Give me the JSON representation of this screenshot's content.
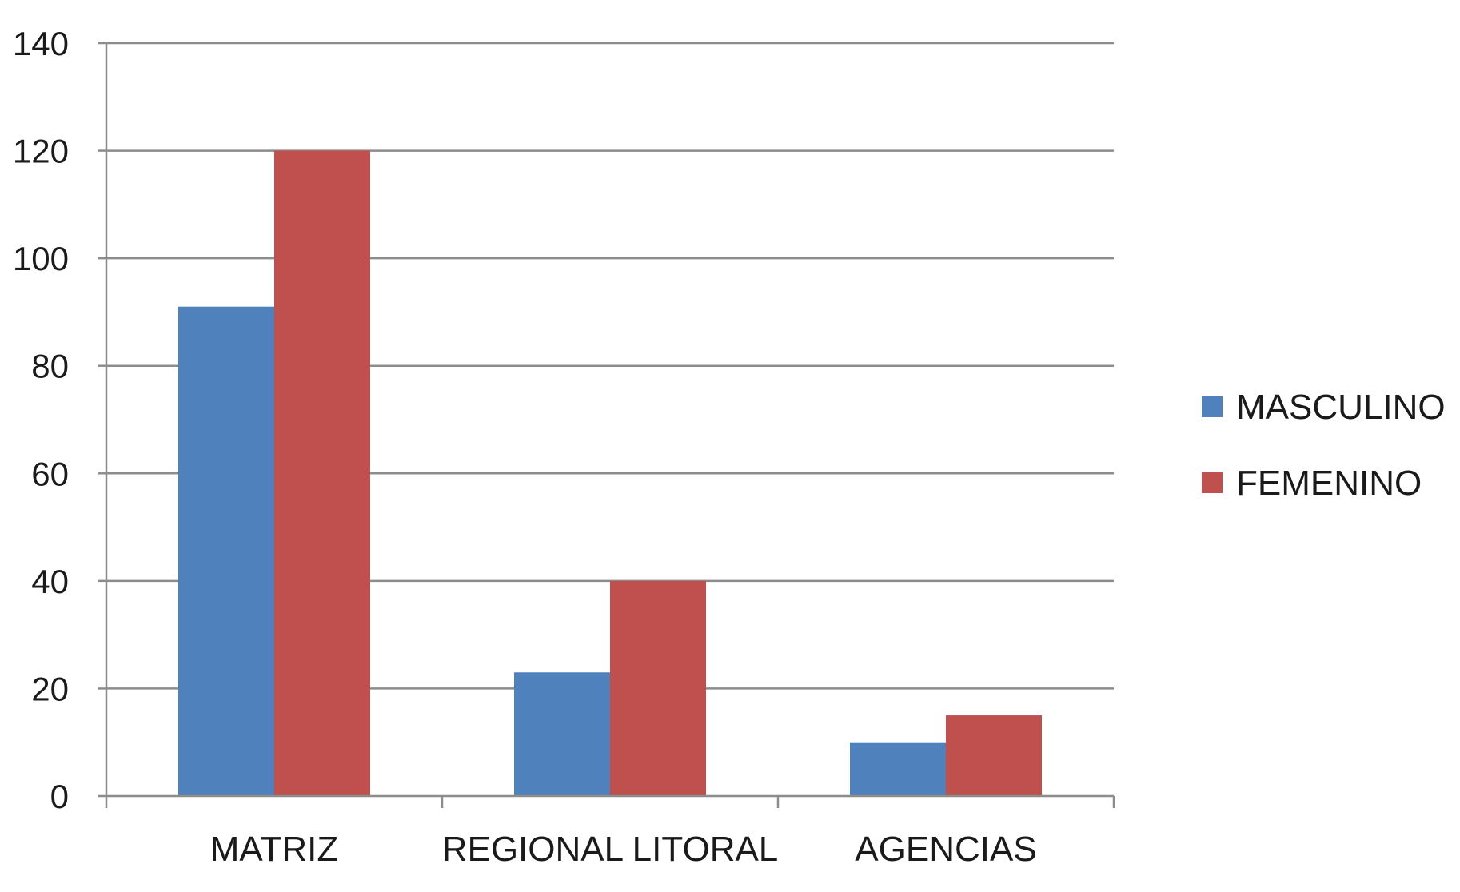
{
  "chart_data": {
    "type": "bar",
    "title": "",
    "xlabel": "",
    "ylabel": "",
    "categories": [
      "MATRIZ",
      "REGIONAL LITORAL",
      "AGENCIAS"
    ],
    "series": [
      {
        "name": "MASCULINO",
        "values": [
          91,
          23,
          10
        ],
        "color": "#4f81bd"
      },
      {
        "name": "FEMENINO",
        "values": [
          120,
          40,
          15
        ],
        "color": "#c0504d"
      }
    ],
    "ylim": [
      0,
      140
    ],
    "yticks": [
      0,
      20,
      40,
      60,
      80,
      100,
      120,
      140
    ],
    "grid": true,
    "legend_position": "right"
  }
}
